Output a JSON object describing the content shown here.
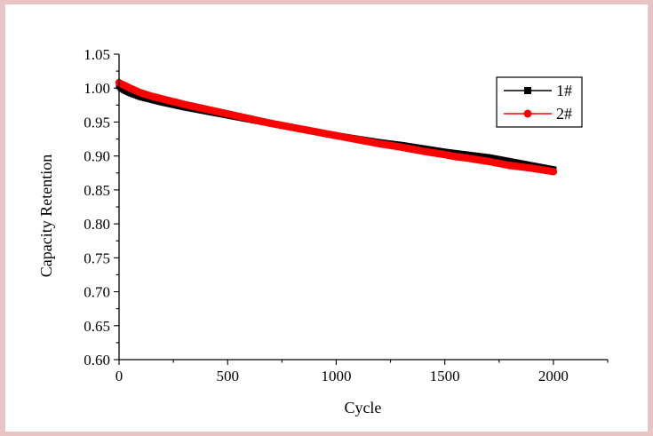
{
  "chart_data": {
    "type": "line",
    "title": "",
    "xlabel": "Cycle",
    "ylabel": "Capacity Retention",
    "xlim": [
      0,
      2250
    ],
    "ylim": [
      0.6,
      1.05
    ],
    "xticks": [
      0,
      500,
      1000,
      1500,
      2000
    ],
    "yticks": [
      0.6,
      0.65,
      0.7,
      0.75,
      0.8,
      0.85,
      0.9,
      0.95,
      1.0,
      1.05
    ],
    "xtick_labels": [
      "0",
      "500",
      "1000",
      "1500",
      "2000"
    ],
    "ytick_labels": [
      "0.60",
      "0.65",
      "0.70",
      "0.75",
      "0.80",
      "0.85",
      "0.90",
      "0.95",
      "1.00",
      "1.05"
    ],
    "grid": false,
    "legend_position": "top-right",
    "series": [
      {
        "name": "1#",
        "color": "#000000",
        "marker": "square",
        "x": [
          0,
          10,
          25,
          50,
          100,
          150,
          200,
          300,
          400,
          500,
          600,
          700,
          800,
          900,
          1000,
          1100,
          1200,
          1300,
          1400,
          1500,
          1550,
          1600,
          1700,
          1750,
          1800,
          1900,
          2000
        ],
        "y": [
          1.003,
          1.0,
          0.997,
          0.993,
          0.987,
          0.983,
          0.979,
          0.972,
          0.966,
          0.96,
          0.954,
          0.948,
          0.942,
          0.936,
          0.93,
          0.925,
          0.92,
          0.916,
          0.911,
          0.906,
          0.904,
          0.902,
          0.898,
          0.895,
          0.892,
          0.886,
          0.88
        ]
      },
      {
        "name": "2#",
        "color": "#ff0000",
        "marker": "circle",
        "x": [
          0,
          10,
          25,
          50,
          100,
          150,
          200,
          300,
          400,
          500,
          600,
          700,
          800,
          900,
          1000,
          1100,
          1200,
          1300,
          1400,
          1500,
          1550,
          1600,
          1700,
          1750,
          1800,
          1900,
          2000
        ],
        "y": [
          1.008,
          1.006,
          1.004,
          1.0,
          0.993,
          0.988,
          0.984,
          0.976,
          0.969,
          0.962,
          0.955,
          0.948,
          0.942,
          0.936,
          0.93,
          0.924,
          0.918,
          0.913,
          0.907,
          0.902,
          0.899,
          0.897,
          0.892,
          0.889,
          0.886,
          0.882,
          0.877
        ]
      }
    ]
  }
}
